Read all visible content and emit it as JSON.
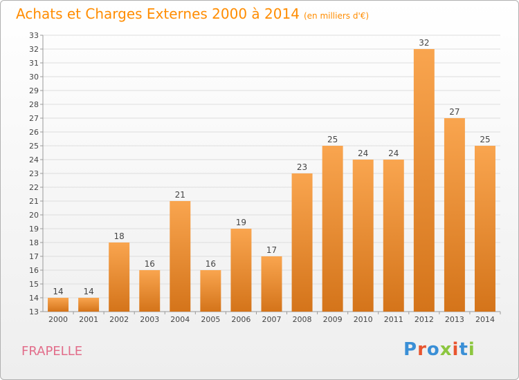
{
  "header": {
    "title": "Achats et Charges Externes 2000 à 2014",
    "unit": "(en milliers d'€)"
  },
  "footer": {
    "place": "FRAPELLE",
    "logo_text": "Proxiti",
    "logo_colors": [
      "#3a8fd6",
      "#e8552f",
      "#3a8fd6",
      "#8cc63f",
      "#e8552f",
      "#3a8fd6",
      "#8cc63f"
    ]
  },
  "colors": {
    "bar_light": "#f9a54f",
    "bar_dark": "#d4741a",
    "title": "#ff8c00",
    "place": "#e26d8a"
  },
  "chart_data": {
    "type": "bar",
    "categories": [
      "2000",
      "2001",
      "2002",
      "2003",
      "2004",
      "2005",
      "2006",
      "2007",
      "2008",
      "2009",
      "2010",
      "2011",
      "2012",
      "2013",
      "2014"
    ],
    "values": [
      14,
      14,
      18,
      16,
      21,
      16,
      19,
      17,
      23,
      25,
      24,
      24,
      32,
      27,
      25
    ],
    "ylim": [
      13,
      33
    ],
    "yticks": [
      13,
      14,
      15,
      16,
      17,
      18,
      19,
      20,
      21,
      22,
      23,
      24,
      25,
      26,
      27,
      28,
      29,
      30,
      31,
      32,
      33
    ],
    "grid": true,
    "data_labels": true
  }
}
